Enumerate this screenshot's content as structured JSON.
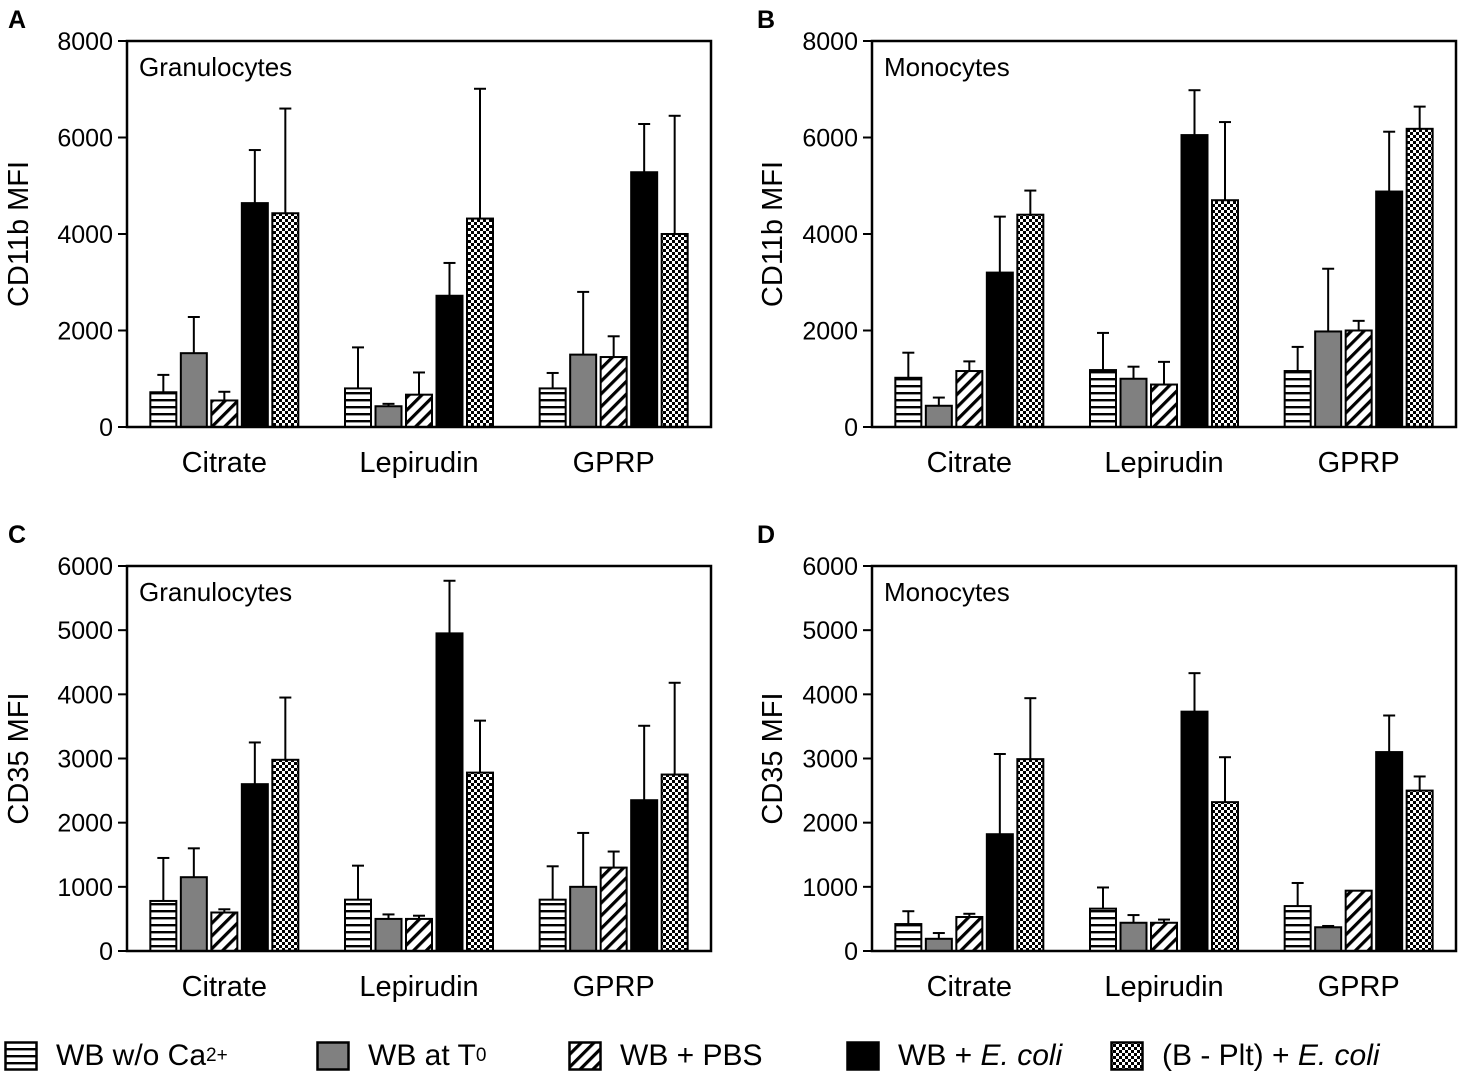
{
  "legend": [
    {
      "key": "wb_wo_ca",
      "pattern": "hstripe",
      "label_main": "WB w/o Ca",
      "label_sup": "2+"
    },
    {
      "key": "wb_t0",
      "pattern": "gray",
      "label_main": "WB at T",
      "label_sub": "0"
    },
    {
      "key": "wb_pbs",
      "pattern": "diag",
      "label_main": "WB + PBS"
    },
    {
      "key": "wb_ecoli",
      "pattern": "black",
      "label_main": "WB + ",
      "label_ital": "E. coli"
    },
    {
      "key": "b_plt_ecoli",
      "pattern": "check",
      "label_main": "(B - Plt) + ",
      "label_ital": "E. coli"
    }
  ],
  "colors": {
    "gray": "#808080",
    "black": "#000000",
    "white": "#ffffff"
  },
  "chart_data": [
    {
      "panel": "A",
      "type": "bar",
      "title": "Granulocytes",
      "xlabel": "",
      "ylabel": "CD11b MFI",
      "ylim": [
        0,
        8000
      ],
      "yticks": [
        0,
        2000,
        4000,
        6000,
        8000
      ],
      "grid": false,
      "categories": [
        "Citrate",
        "Lepirudin",
        "GPRP"
      ],
      "series": [
        {
          "name": "WB w/o Ca2+",
          "pattern": "hstripe",
          "values": [
            720,
            800,
            800
          ],
          "errors": [
            360,
            850,
            320
          ]
        },
        {
          "name": "WB at T0",
          "pattern": "gray",
          "values": [
            1530,
            430,
            1500
          ],
          "errors": [
            750,
            50,
            1300
          ]
        },
        {
          "name": "WB + PBS",
          "pattern": "diag",
          "values": [
            550,
            670,
            1450
          ],
          "errors": [
            180,
            460,
            430
          ]
        },
        {
          "name": "WB + E. coli",
          "pattern": "black",
          "values": [
            4640,
            2720,
            5280
          ],
          "errors": [
            1100,
            680,
            1000
          ]
        },
        {
          "name": "(B - Plt) + E. coli",
          "pattern": "check",
          "values": [
            4430,
            4320,
            4000
          ],
          "errors": [
            2170,
            2690,
            2450
          ]
        }
      ]
    },
    {
      "panel": "B",
      "type": "bar",
      "title": "Monocytes",
      "xlabel": "",
      "ylabel": "CD11b MFI",
      "ylim": [
        0,
        8000
      ],
      "yticks": [
        0,
        2000,
        4000,
        6000,
        8000
      ],
      "grid": false,
      "categories": [
        "Citrate",
        "Lepirudin",
        "GPRP"
      ],
      "series": [
        {
          "name": "WB w/o Ca2+",
          "pattern": "hstripe",
          "values": [
            1020,
            1180,
            1160
          ],
          "errors": [
            520,
            770,
            500
          ]
        },
        {
          "name": "WB at T0",
          "pattern": "gray",
          "values": [
            440,
            1000,
            1980
          ],
          "errors": [
            170,
            250,
            1300
          ]
        },
        {
          "name": "WB + PBS",
          "pattern": "diag",
          "values": [
            1160,
            880,
            2000
          ],
          "errors": [
            200,
            470,
            200
          ]
        },
        {
          "name": "WB + E. coli",
          "pattern": "black",
          "values": [
            3200,
            6050,
            4880
          ],
          "errors": [
            1160,
            930,
            1240
          ]
        },
        {
          "name": "(B - Plt) + E. coli",
          "pattern": "check",
          "values": [
            4400,
            4700,
            6180
          ],
          "errors": [
            500,
            1620,
            460
          ]
        }
      ]
    },
    {
      "panel": "C",
      "type": "bar",
      "title": "Granulocytes",
      "xlabel": "",
      "ylabel": "CD35 MFI",
      "ylim": [
        0,
        6000
      ],
      "yticks": [
        0,
        1000,
        2000,
        3000,
        4000,
        5000,
        6000
      ],
      "grid": false,
      "categories": [
        "Citrate",
        "Lepirudin",
        "GPRP"
      ],
      "series": [
        {
          "name": "WB w/o Ca2+",
          "pattern": "hstripe",
          "values": [
            780,
            800,
            800
          ],
          "errors": [
            670,
            530,
            520
          ]
        },
        {
          "name": "WB at T0",
          "pattern": "gray",
          "values": [
            1150,
            500,
            1000
          ],
          "errors": [
            450,
            70,
            840
          ]
        },
        {
          "name": "WB + PBS",
          "pattern": "diag",
          "values": [
            600,
            500,
            1300
          ],
          "errors": [
            50,
            50,
            250
          ]
        },
        {
          "name": "WB + E. coli",
          "pattern": "black",
          "values": [
            2600,
            4950,
            2350
          ],
          "errors": [
            650,
            820,
            1160
          ]
        },
        {
          "name": "(B - Plt) + E. coli",
          "pattern": "check",
          "values": [
            2980,
            2780,
            2750
          ],
          "errors": [
            970,
            810,
            1430
          ]
        }
      ]
    },
    {
      "panel": "D",
      "type": "bar",
      "title": "Monocytes",
      "xlabel": "",
      "ylabel": "CD35 MFI",
      "ylim": [
        0,
        6000
      ],
      "yticks": [
        0,
        1000,
        2000,
        3000,
        4000,
        5000,
        6000
      ],
      "grid": false,
      "categories": [
        "Citrate",
        "Lepirudin",
        "GPRP"
      ],
      "series": [
        {
          "name": "WB w/o Ca2+",
          "pattern": "hstripe",
          "values": [
            420,
            660,
            700
          ],
          "errors": [
            200,
            330,
            360
          ]
        },
        {
          "name": "WB at T0",
          "pattern": "gray",
          "values": [
            190,
            440,
            370
          ],
          "errors": [
            90,
            120,
            20
          ]
        },
        {
          "name": "WB + PBS",
          "pattern": "diag",
          "values": [
            530,
            440,
            940
          ],
          "errors": [
            50,
            50,
            0
          ]
        },
        {
          "name": "WB + E. coli",
          "pattern": "black",
          "values": [
            1820,
            3730,
            3100
          ],
          "errors": [
            1250,
            600,
            570
          ]
        },
        {
          "name": "(B - Plt) + E. coli",
          "pattern": "check",
          "values": [
            2990,
            2320,
            2500
          ],
          "errors": [
            950,
            700,
            220
          ]
        }
      ]
    }
  ]
}
